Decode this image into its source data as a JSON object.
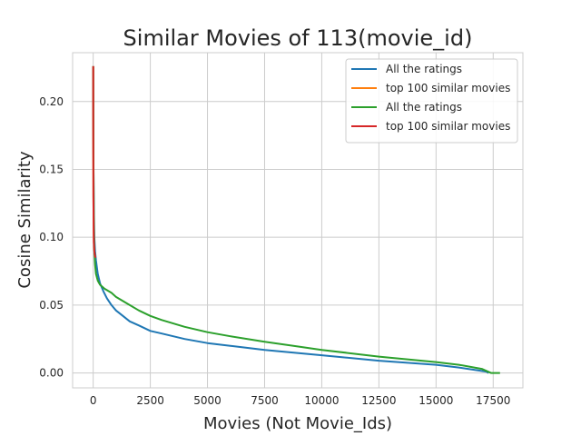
{
  "chart_data": {
    "type": "line",
    "title": "Similar Movies of 113(movie_id)",
    "xlabel": "Movies (Not Movie_Ids)",
    "ylabel": "Cosine Similarity",
    "xlim": [
      -900,
      18800
    ],
    "ylim": [
      -0.011,
      0.236
    ],
    "xticks": [
      0,
      2500,
      5000,
      7500,
      10000,
      12500,
      15000,
      17500
    ],
    "yticks": [
      0.0,
      0.05,
      0.1,
      0.15,
      0.2
    ],
    "xtick_labels": [
      "0",
      "2500",
      "5000",
      "7500",
      "10000",
      "12500",
      "15000",
      "17500"
    ],
    "ytick_labels": [
      "0.00",
      "0.05",
      "0.10",
      "0.15",
      "0.20"
    ],
    "grid": true,
    "legend_position": "top-right",
    "series": [
      {
        "name": "All the ratings",
        "color": "#1f77b4",
        "x": [
          0,
          5,
          15,
          30,
          50,
          80,
          120,
          200,
          300,
          450,
          600,
          800,
          1000,
          1300,
          1600,
          2000,
          2500,
          3000,
          4000,
          5000,
          6000,
          7500,
          10000,
          12500,
          15000,
          16000,
          16800,
          17200,
          17300
        ],
        "y": [
          0.226,
          0.2,
          0.15,
          0.12,
          0.1,
          0.09,
          0.083,
          0.073,
          0.066,
          0.06,
          0.055,
          0.05,
          0.046,
          0.042,
          0.038,
          0.035,
          0.031,
          0.029,
          0.025,
          0.022,
          0.02,
          0.017,
          0.013,
          0.009,
          0.006,
          0.004,
          0.002,
          0.001,
          0.0
        ]
      },
      {
        "name": "top 100 similar movies",
        "color": "#ff7f0e",
        "x": [
          0,
          2,
          5,
          10,
          20,
          30,
          50,
          70,
          100
        ],
        "y": [
          0.226,
          0.19,
          0.16,
          0.13,
          0.105,
          0.096,
          0.09,
          0.087,
          0.085
        ]
      },
      {
        "name": "All the ratings",
        "color": "#2ca02c",
        "x": [
          0,
          5,
          15,
          30,
          50,
          80,
          120,
          200,
          300,
          500,
          800,
          1000,
          1500,
          2000,
          2500,
          3000,
          4000,
          5000,
          6000,
          7500,
          10000,
          12500,
          15000,
          16000,
          17000,
          17400,
          17500,
          17800
        ],
        "y": [
          0.226,
          0.2,
          0.15,
          0.11,
          0.09,
          0.08,
          0.073,
          0.068,
          0.065,
          0.062,
          0.059,
          0.056,
          0.051,
          0.046,
          0.042,
          0.039,
          0.034,
          0.03,
          0.027,
          0.023,
          0.017,
          0.012,
          0.008,
          0.006,
          0.003,
          0.0,
          0.0,
          0.0
        ]
      },
      {
        "name": "top 100 similar movies",
        "color": "#d62728",
        "x": [
          0,
          2,
          5,
          10,
          20,
          30,
          50,
          70,
          100
        ],
        "y": [
          0.226,
          0.19,
          0.16,
          0.13,
          0.105,
          0.096,
          0.09,
          0.087,
          0.085
        ]
      }
    ]
  }
}
